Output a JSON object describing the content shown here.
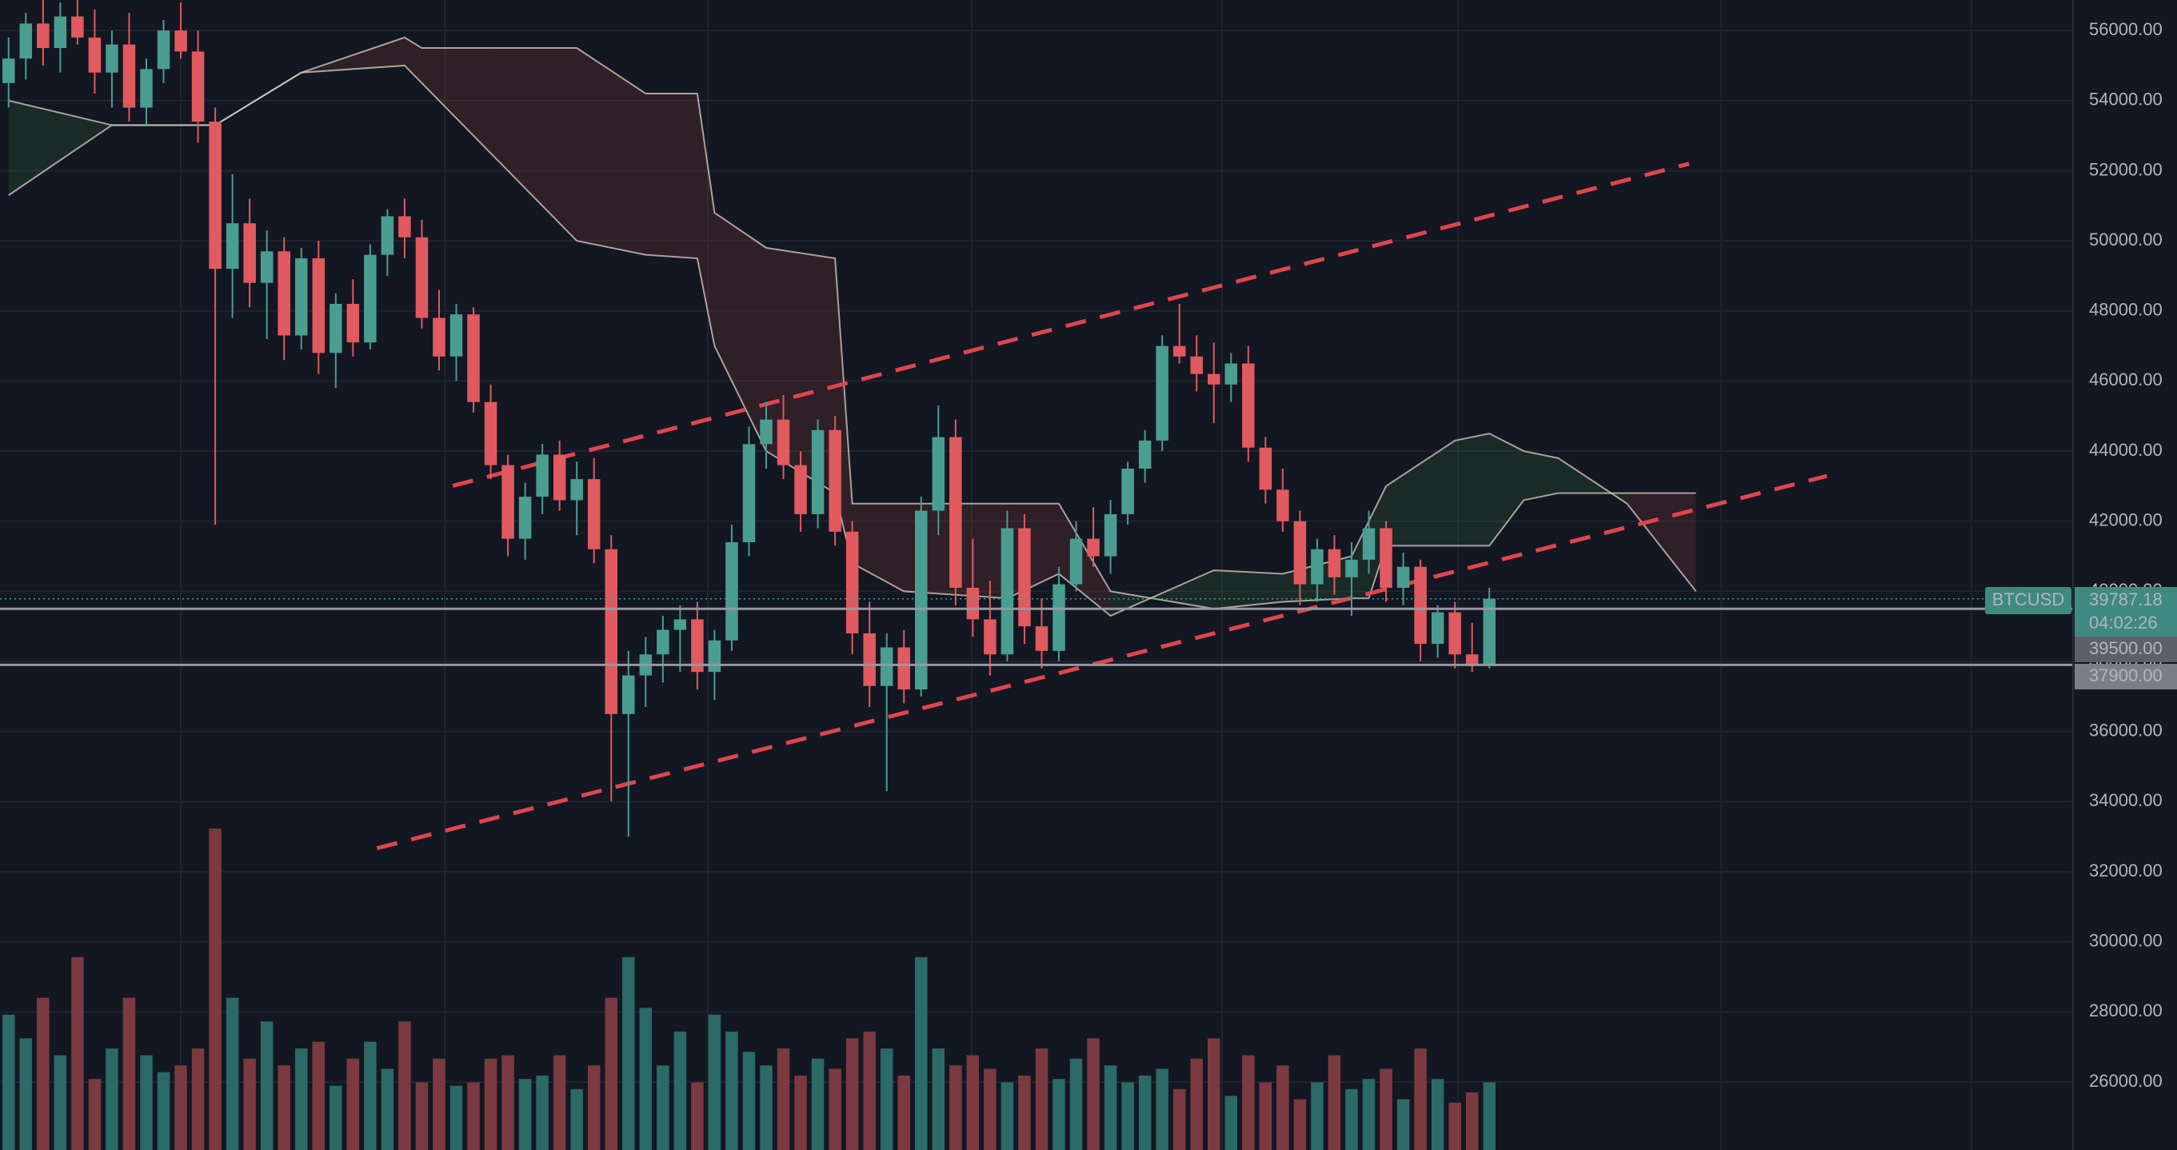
{
  "chart_data": {
    "type": "candlestick",
    "symbol": "BTCUSD",
    "countdown": "04:02:26",
    "last_label": "39787.18",
    "up_color": "#4a9d91",
    "down_color": "#e05a5f",
    "volume_up_color": "#2b6a66",
    "volume_down_color": "#7a3a40",
    "ylim": [
      24060,
      56870
    ],
    "xlim": [
      -0.5,
      119.9
    ],
    "vlim": [
      0,
      104
    ],
    "grid": true,
    "yticks": [
      {
        "value": 26000,
        "label": "26000.00"
      },
      {
        "value": 28000,
        "label": "28000.00"
      },
      {
        "value": 30000,
        "label": "30000.00"
      },
      {
        "value": 32000,
        "label": "32000.00"
      },
      {
        "value": 34000,
        "label": "34000.00"
      },
      {
        "value": 36000,
        "label": "36000.00"
      },
      {
        "value": 38000,
        "label": "38000.00"
      },
      {
        "value": 40000,
        "label": "40000.00"
      },
      {
        "value": 42000,
        "label": "42000.00"
      },
      {
        "value": 44000,
        "label": "44000.00"
      },
      {
        "value": 46000,
        "label": "46000.00"
      },
      {
        "value": 48000,
        "label": "48000.00"
      },
      {
        "value": 50000,
        "label": "50000.00"
      },
      {
        "value": 52000,
        "label": "52000.00"
      },
      {
        "value": 54000,
        "label": "54000.00"
      },
      {
        "value": 56000,
        "label": "56000.00"
      }
    ],
    "levels": [
      {
        "value": 39500,
        "label": "39500.00"
      },
      {
        "value": 37900,
        "label": "37900.00"
      }
    ],
    "candles": [
      [
        54500,
        55800,
        53800,
        55200
      ],
      [
        55200,
        56500,
        54600,
        56200
      ],
      [
        56200,
        57000,
        55000,
        55500
      ],
      [
        55500,
        56800,
        54800,
        56400
      ],
      [
        56400,
        57200,
        55600,
        55800
      ],
      [
        55800,
        56600,
        54200,
        54800
      ],
      [
        54800,
        56000,
        53800,
        55600
      ],
      [
        55600,
        56500,
        53400,
        53800
      ],
      [
        53800,
        55200,
        53300,
        54900
      ],
      [
        54900,
        56300,
        54500,
        56000
      ],
      [
        56000,
        56800,
        55200,
        55400
      ],
      [
        55400,
        56000,
        52800,
        53400
      ],
      [
        53400,
        53800,
        41900,
        49200
      ],
      [
        49200,
        51900,
        47800,
        50500
      ],
      [
        50500,
        51200,
        48100,
        48800
      ],
      [
        48800,
        50300,
        47200,
        49700
      ],
      [
        49700,
        50100,
        46600,
        47300
      ],
      [
        47300,
        49800,
        46900,
        49500
      ],
      [
        49500,
        50000,
        46200,
        46800
      ],
      [
        46800,
        48500,
        45800,
        48200
      ],
      [
        48200,
        48900,
        46700,
        47100
      ],
      [
        47100,
        49900,
        46900,
        49600
      ],
      [
        49600,
        50900,
        49000,
        50700
      ],
      [
        50700,
        51200,
        49500,
        50100
      ],
      [
        50100,
        50600,
        47500,
        47800
      ],
      [
        47800,
        48600,
        46300,
        46700
      ],
      [
        46700,
        48200,
        46000,
        47900
      ],
      [
        47900,
        48100,
        45100,
        45400
      ],
      [
        45400,
        45900,
        43200,
        43600
      ],
      [
        43600,
        43900,
        41000,
        41500
      ],
      [
        41500,
        43100,
        40900,
        42700
      ],
      [
        42700,
        44200,
        42200,
        43900
      ],
      [
        43900,
        44300,
        42300,
        42600
      ],
      [
        42600,
        43700,
        41600,
        43200
      ],
      [
        43200,
        43800,
        40800,
        41200
      ],
      [
        41200,
        41600,
        34000,
        36500
      ],
      [
        36500,
        38300,
        33000,
        37600
      ],
      [
        37600,
        38700,
        36700,
        38200
      ],
      [
        38200,
        39300,
        37400,
        38900
      ],
      [
        38900,
        39600,
        37700,
        39200
      ],
      [
        39200,
        39700,
        37200,
        37700
      ],
      [
        37700,
        38900,
        36900,
        38600
      ],
      [
        38600,
        41900,
        38300,
        41400
      ],
      [
        41400,
        44700,
        41000,
        44200
      ],
      [
        44200,
        45400,
        43500,
        44900
      ],
      [
        44900,
        45600,
        43200,
        43600
      ],
      [
        43600,
        44000,
        41700,
        42200
      ],
      [
        42200,
        44900,
        41800,
        44600
      ],
      [
        44600,
        45000,
        41300,
        41700
      ],
      [
        41700,
        42000,
        38200,
        38800
      ],
      [
        38800,
        39700,
        36700,
        37300
      ],
      [
        37300,
        38800,
        34300,
        38400
      ],
      [
        38400,
        38900,
        36800,
        37200
      ],
      [
        37200,
        42700,
        37000,
        42300
      ],
      [
        42300,
        45300,
        41600,
        44400
      ],
      [
        44400,
        44900,
        39600,
        40100
      ],
      [
        40100,
        41500,
        38700,
        39200
      ],
      [
        39200,
        40300,
        37600,
        38200
      ],
      [
        38200,
        42300,
        38000,
        41800
      ],
      [
        41800,
        42200,
        38500,
        39000
      ],
      [
        39000,
        39800,
        37800,
        38300
      ],
      [
        38300,
        40700,
        38000,
        40200
      ],
      [
        40200,
        42000,
        40000,
        41500
      ],
      [
        41500,
        42400,
        40700,
        41000
      ],
      [
        41000,
        42600,
        40500,
        42200
      ],
      [
        42200,
        43700,
        41900,
        43500
      ],
      [
        43500,
        44600,
        43100,
        44300
      ],
      [
        44300,
        47300,
        44000,
        47000
      ],
      [
        47000,
        48200,
        46500,
        46700
      ],
      [
        46700,
        47300,
        45700,
        46200
      ],
      [
        46200,
        47100,
        44800,
        45900
      ],
      [
        45900,
        46800,
        45400,
        46500
      ],
      [
        46500,
        47000,
        43700,
        44100
      ],
      [
        44100,
        44400,
        42500,
        42900
      ],
      [
        42900,
        43500,
        41700,
        42000
      ],
      [
        42000,
        42300,
        39600,
        40200
      ],
      [
        40200,
        41500,
        39700,
        41200
      ],
      [
        41200,
        41600,
        39900,
        40400
      ],
      [
        40400,
        41400,
        39300,
        40900
      ],
      [
        40900,
        42300,
        40500,
        41800
      ],
      [
        41800,
        42000,
        39700,
        40100
      ],
      [
        40100,
        41100,
        39600,
        40700
      ],
      [
        40700,
        40900,
        38000,
        38500
      ],
      [
        38500,
        39600,
        38100,
        39400
      ],
      [
        39400,
        39700,
        37800,
        38200
      ],
      [
        38200,
        39100,
        37700,
        37900
      ],
      [
        37900,
        40100,
        37800,
        39787.18
      ]
    ],
    "volume": [
      40,
      33,
      45,
      28,
      57,
      21,
      30,
      45,
      28,
      23,
      25,
      30,
      95,
      45,
      27,
      38,
      25,
      30,
      32,
      19,
      27,
      32,
      24,
      38,
      20,
      27,
      19,
      20,
      27,
      28,
      21,
      22,
      28,
      18,
      25,
      45,
      57,
      42,
      25,
      35,
      20,
      40,
      35,
      29,
      25,
      30,
      22,
      27,
      24,
      33,
      35,
      30,
      22,
      57,
      30,
      25,
      28,
      24,
      20,
      22,
      30,
      21,
      27,
      33,
      25,
      20,
      22,
      24,
      18,
      27,
      33,
      16,
      28,
      20,
      25,
      15,
      20,
      28,
      18,
      21,
      24,
      15,
      30,
      21,
      14,
      17,
      20
    ],
    "cloud": {
      "x": [
        0,
        6,
        12,
        17,
        23,
        24,
        28,
        33,
        37,
        40,
        41,
        44,
        48,
        49,
        52,
        58,
        61,
        64,
        70,
        74,
        78,
        79,
        80,
        84,
        86,
        88,
        90,
        94,
        98
      ],
      "span_a": [
        54000,
        53300,
        53300,
        54800,
        55000,
        54500,
        52500,
        50000,
        49600,
        49500,
        47000,
        44000,
        42800,
        40800,
        40000,
        39800,
        40500,
        39300,
        40600,
        40500,
        41000,
        42000,
        43000,
        44300,
        44500,
        44000,
        43800,
        42500,
        40000
      ],
      "span_b": [
        51300,
        53300,
        53300,
        54800,
        55800,
        55500,
        55500,
        55500,
        54200,
        54200,
        50800,
        49800,
        49500,
        42500,
        42500,
        42500,
        42500,
        40000,
        39500,
        39700,
        39800,
        39800,
        41300,
        41300,
        41300,
        42600,
        42800,
        42800,
        42800
      ],
      "up_fill": "rgba(76,175,80,0.13)",
      "down_fill": "rgba(239,83,80,0.13)",
      "line_color": "#d9cfc4"
    },
    "trendlines": {
      "color": "#e0454f",
      "lines": [
        [
          [
            25.8,
            43010
          ],
          [
            97.6,
            52200
          ]
        ],
        [
          [
            21.4,
            32670
          ],
          [
            105.6,
            43290
          ]
        ]
      ]
    }
  }
}
